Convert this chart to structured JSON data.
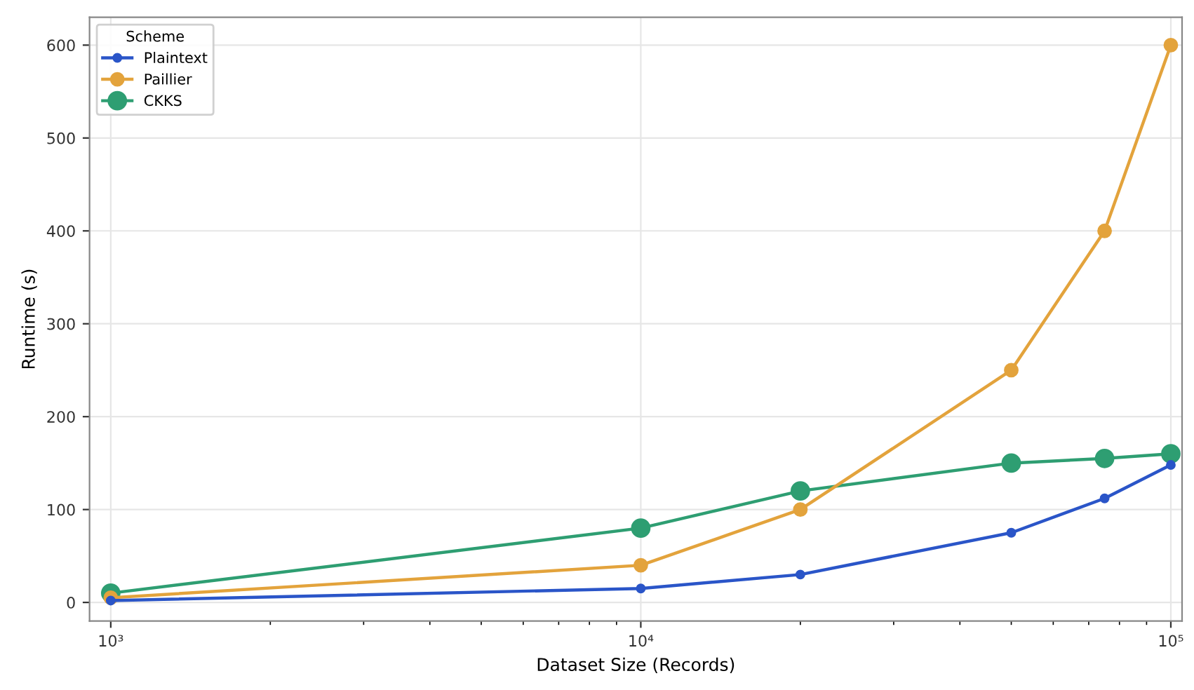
{
  "chart_data": {
    "type": "line",
    "xlabel": "Dataset Size (Records)",
    "ylabel": "Runtime (s)",
    "legend_title": "Scheme",
    "x": [
      1000,
      10000,
      20000,
      50000,
      75000,
      100000
    ],
    "series": [
      {
        "name": "Plaintext",
        "color": "#2a55c8",
        "values": [
          2,
          15,
          30,
          75,
          112,
          148
        ]
      },
      {
        "name": "Paillier",
        "color": "#e3a33c",
        "values": [
          5,
          40,
          100,
          250,
          400,
          600
        ]
      },
      {
        "name": "CKKS",
        "color": "#2e9e72",
        "values": [
          10,
          80,
          120,
          150,
          155,
          160
        ]
      }
    ],
    "log": "x",
    "xlim": [
      912,
      105000
    ],
    "xticks": [
      {
        "value": 1000,
        "label": "10³"
      },
      {
        "value": 10000,
        "label": "10⁴"
      },
      {
        "value": 100000,
        "label": "10⁵"
      }
    ],
    "ylim": [
      -20,
      630
    ],
    "yticks": [
      0,
      100,
      200,
      300,
      400,
      500,
      600
    ],
    "grid": true,
    "legend": "top left",
    "marker": "circle",
    "line_style": "solid"
  }
}
